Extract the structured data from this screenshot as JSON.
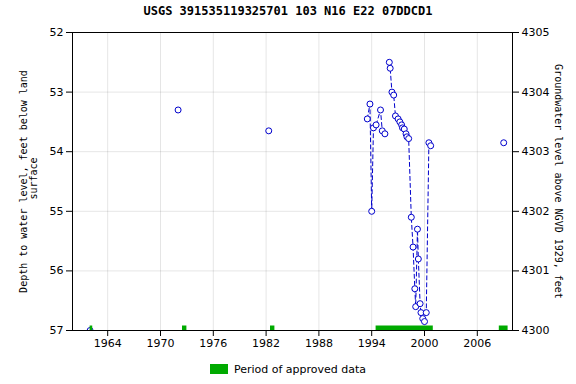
{
  "chart_data": {
    "type": "scatter",
    "title": "USGS 391535119325701 103  N16 E22 07DDCD1",
    "ylabel": "Depth to water level, feet below land\n surface",
    "y2label": "Groundwater level above NGVD 1929, feet",
    "xlim": [
      1960,
      2010
    ],
    "xticks": [
      1964,
      1970,
      1976,
      1982,
      1988,
      1994,
      2000,
      2006
    ],
    "ylim": [
      57.0,
      52.0
    ],
    "yticks": [
      52,
      53,
      54,
      55,
      56,
      57
    ],
    "y2lim": [
      4300.0,
      4305.0
    ],
    "y2ticks": [
      4300,
      4301,
      4302,
      4303,
      4304,
      4305
    ],
    "grid": true,
    "legend": "bottom",
    "series": [
      {
        "type": "line",
        "color": "#0000cc",
        "line_style": "dashed",
        "x": [
          1993.5,
          1993.8,
          1994.0,
          1994.2,
          1994.5,
          1995.0,
          1995.2,
          1995.5
        ],
        "values": [
          53.45,
          53.2,
          55.0,
          53.6,
          53.55,
          53.3,
          53.65,
          53.7
        ]
      },
      {
        "type": "line",
        "color": "#0000cc",
        "line_style": "dashed",
        "x": [
          1996.0,
          1996.1,
          1996.3,
          1996.5,
          1996.7,
          1997.0,
          1997.2,
          1997.4,
          1997.5,
          1997.7,
          1997.9,
          1998.0,
          1998.2,
          1998.5,
          1998.7,
          1998.9,
          1999.0,
          1999.2,
          1999.3,
          1999.5,
          1999.6,
          1999.8,
          2000.0,
          2000.2,
          2000.5,
          2000.7
        ],
        "values": [
          52.5,
          52.6,
          53.0,
          53.05,
          53.4,
          53.45,
          53.5,
          53.55,
          53.6,
          53.62,
          53.7,
          53.75,
          53.78,
          55.1,
          55.6,
          56.3,
          56.6,
          55.3,
          55.8,
          56.55,
          56.7,
          56.8,
          56.85,
          56.7,
          53.85,
          53.9
        ]
      },
      {
        "type": "scatter",
        "color": "#0000cc",
        "marker": "circle",
        "x": [
          1962.0,
          1972.0,
          1982.3,
          1993.5,
          1993.8,
          1994.0,
          1994.2,
          1994.5,
          1995.0,
          1995.2,
          1995.5,
          1996.0,
          1996.1,
          1996.3,
          1996.5,
          1996.7,
          1997.0,
          1997.2,
          1997.4,
          1997.5,
          1997.7,
          1997.9,
          1998.0,
          1998.2,
          1998.5,
          1998.7,
          1998.9,
          1999.0,
          1999.2,
          1999.3,
          1999.5,
          1999.6,
          1999.8,
          2000.0,
          2000.2,
          2000.5,
          2000.7,
          2009.0
        ],
        "values": [
          57.0,
          53.3,
          53.65,
          53.45,
          53.2,
          55.0,
          53.6,
          53.55,
          53.3,
          53.65,
          53.7,
          52.5,
          52.6,
          53.0,
          53.05,
          53.4,
          53.45,
          53.5,
          53.55,
          53.6,
          53.62,
          53.7,
          53.75,
          53.78,
          55.1,
          55.6,
          56.3,
          56.6,
          55.3,
          55.8,
          56.55,
          56.7,
          56.8,
          56.85,
          56.7,
          53.85,
          53.9,
          53.85
        ]
      },
      {
        "name": "Period of approved data",
        "type": "bar",
        "orientation": "horizontal",
        "color": "#00aa00",
        "x_start": [
          1962.0,
          1972.5,
          1982.5,
          1994.5,
          2008.5
        ],
        "x_end": [
          1962.3,
          1973.0,
          1983.0,
          2001.0,
          2009.5
        ],
        "values": [
          57.0,
          57.0,
          57.0,
          57.0,
          57.0
        ]
      }
    ]
  }
}
